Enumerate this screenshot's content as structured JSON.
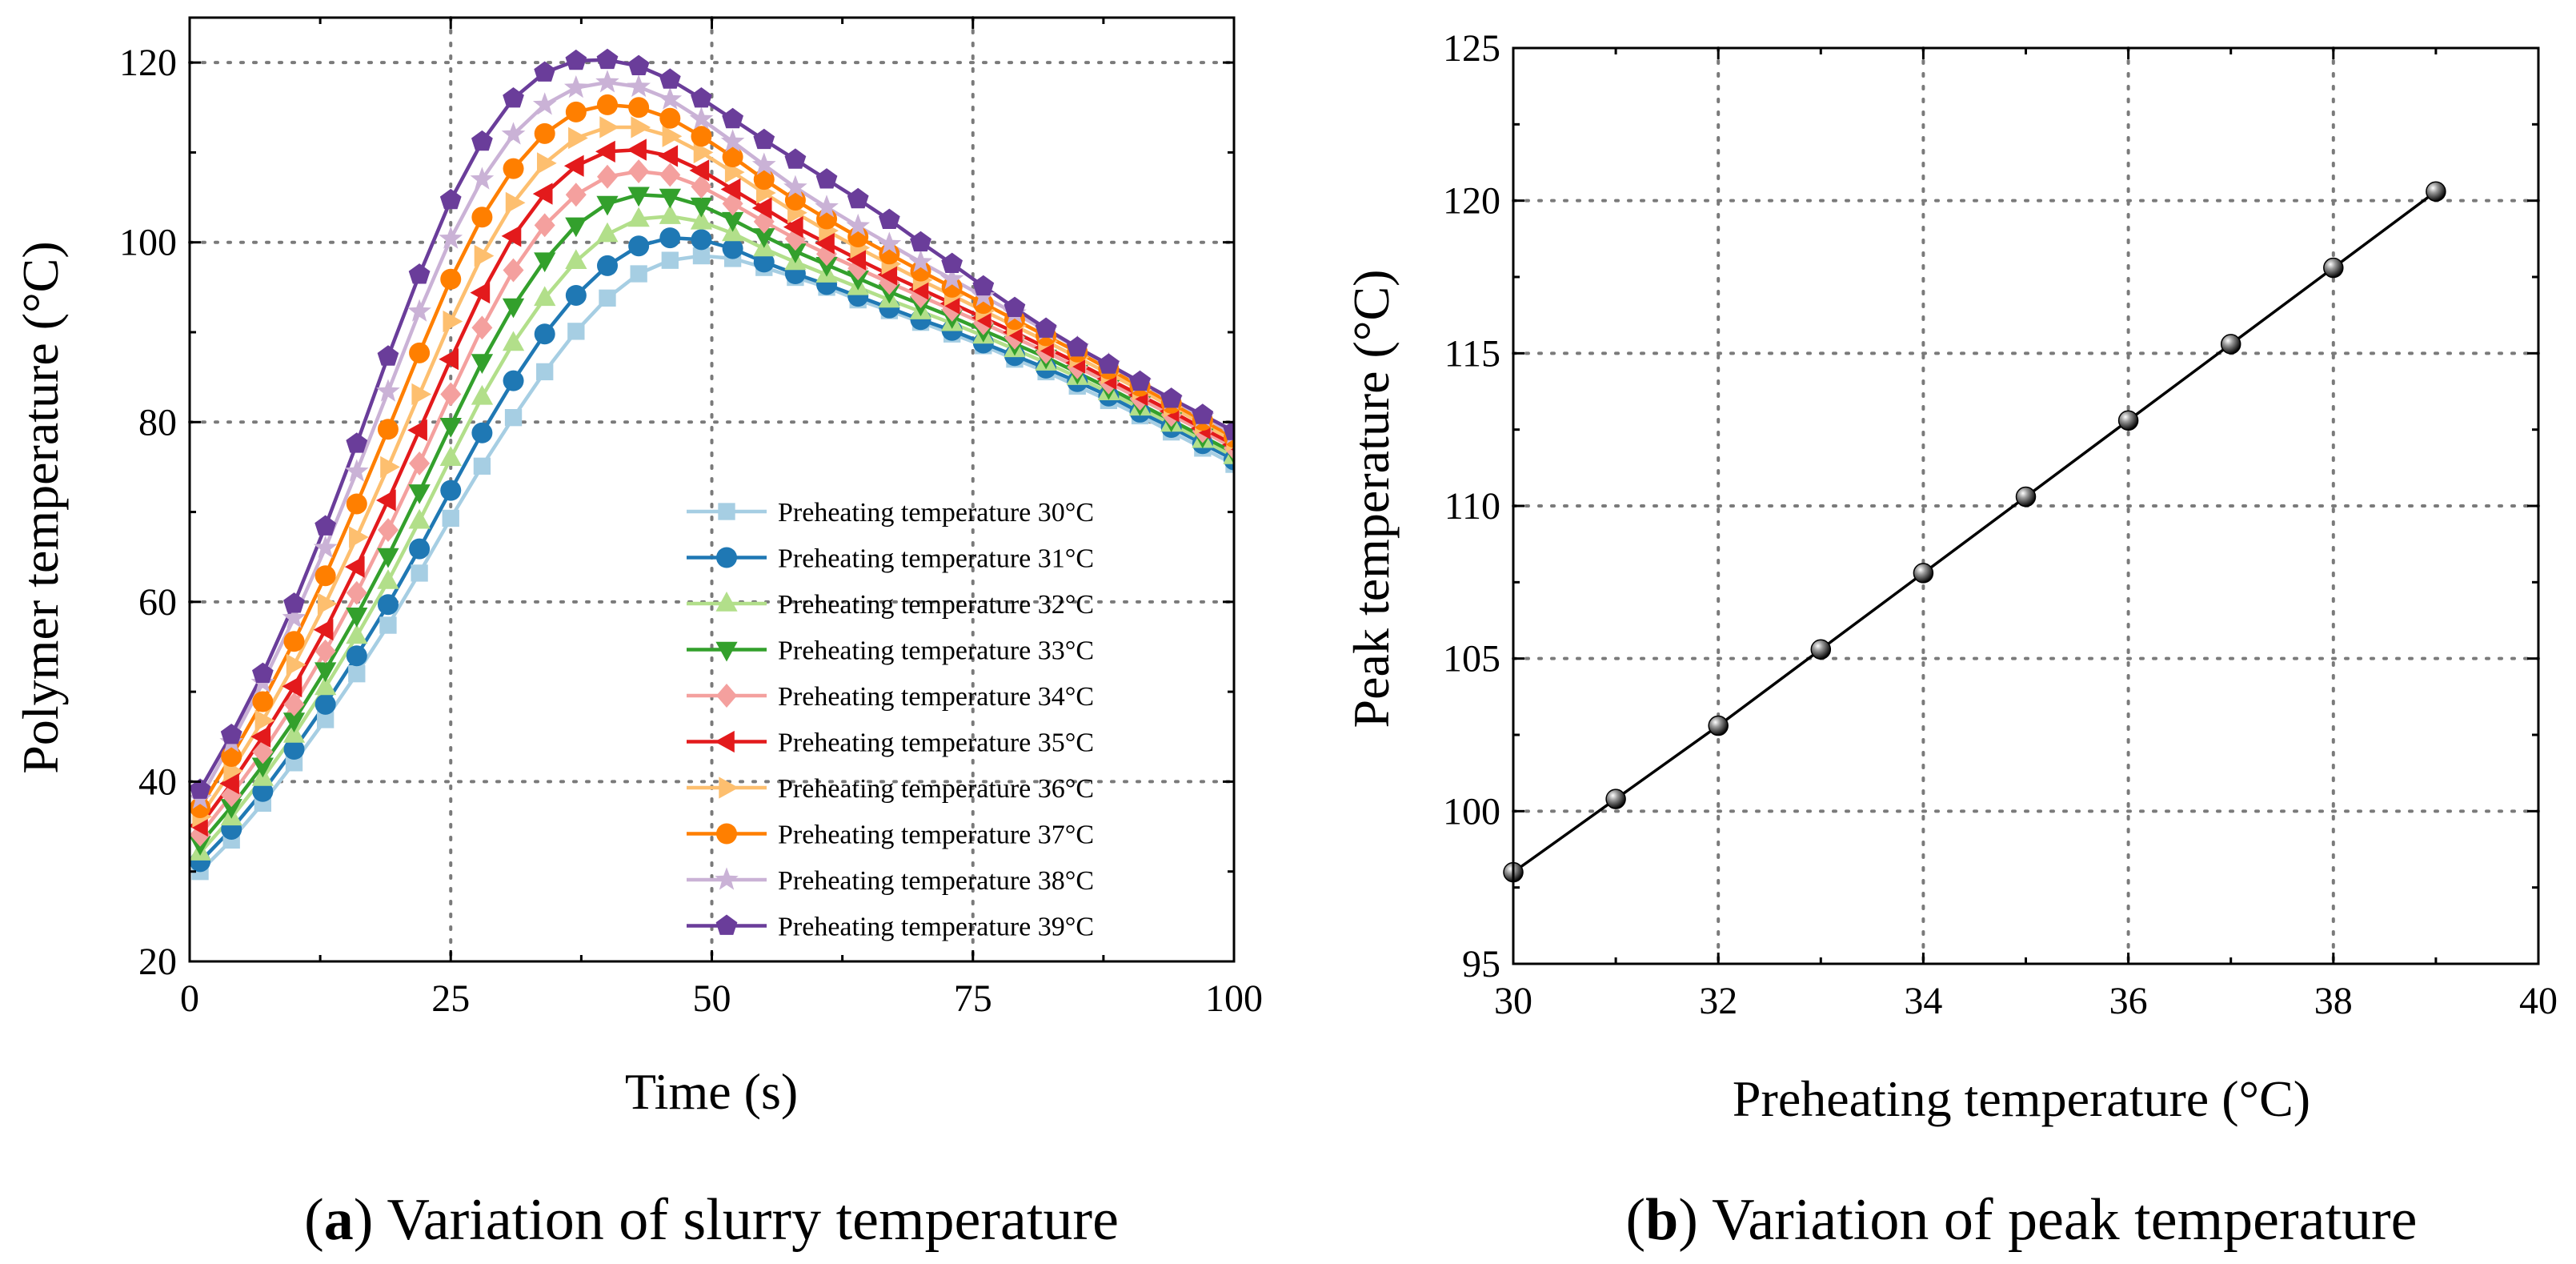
{
  "chart_data": [
    {
      "type": "line",
      "caption_letter": "a",
      "caption_text": ") Variation of slurry temperature",
      "caption_open": "(",
      "xlabel": "Time (s)",
      "ylabel": "Polymer temperature (°C)",
      "xlim": [
        0,
        100
      ],
      "ylim": [
        20,
        125
      ],
      "xticks": [
        "0",
        "25",
        "50",
        "75",
        "100"
      ],
      "yticks": [
        "20",
        "40",
        "60",
        "80",
        "100",
        "120"
      ],
      "grid": true,
      "legend_position": "bottom-right",
      "x": [
        1,
        4,
        7,
        10,
        13,
        16,
        19,
        22,
        25,
        28,
        31,
        34,
        37,
        40,
        43,
        46,
        49,
        52,
        55,
        58,
        61,
        64,
        67,
        70,
        73,
        76,
        79,
        82,
        85,
        88,
        91,
        94,
        97,
        100
      ],
      "series": [
        {
          "name": "Preheating temperature 30°C",
          "color": "#a6cee3",
          "marker": "square",
          "values": [
            30.0,
            33.5,
            37.6,
            42.1,
            46.9,
            52.0,
            57.4,
            63.2,
            69.3,
            75.1,
            80.5,
            85.6,
            90.1,
            93.8,
            96.5,
            98.0,
            98.5,
            98.2,
            97.2,
            96.1,
            95.0,
            93.6,
            92.4,
            91.1,
            89.8,
            88.5,
            87.0,
            85.6,
            84.0,
            82.4,
            80.7,
            78.9,
            77.1,
            75.3
          ]
        },
        {
          "name": "Preheating temperature 31°C",
          "color": "#1f78b4",
          "marker": "circle",
          "values": [
            31.1,
            34.7,
            38.9,
            43.6,
            48.6,
            54.0,
            59.7,
            65.9,
            72.4,
            78.8,
            84.6,
            89.8,
            94.1,
            97.4,
            99.6,
            100.5,
            100.3,
            99.3,
            97.8,
            96.5,
            95.3,
            94.0,
            92.7,
            91.4,
            90.2,
            88.8,
            87.4,
            86.0,
            84.5,
            82.9,
            81.1,
            79.4,
            77.6,
            75.8
          ]
        },
        {
          "name": "Preheating temperature 32°C",
          "color": "#b2df8a",
          "marker": "triangle-up",
          "values": [
            32.1,
            36.0,
            40.4,
            45.2,
            50.5,
            56.2,
            62.3,
            69.0,
            76.0,
            82.8,
            88.8,
            93.8,
            97.9,
            100.9,
            102.6,
            102.9,
            102.3,
            101.0,
            99.3,
            97.8,
            96.4,
            95.0,
            93.6,
            92.3,
            91.0,
            89.6,
            88.1,
            86.6,
            85.0,
            83.3,
            81.6,
            79.8,
            78.0,
            76.2
          ]
        },
        {
          "name": "Preheating temperature 33°C",
          "color": "#33a02c",
          "marker": "triangle-down",
          "values": [
            33.1,
            37.2,
            41.8,
            46.8,
            52.4,
            58.5,
            65.1,
            72.2,
            79.6,
            86.7,
            92.9,
            98.0,
            101.9,
            104.3,
            105.3,
            105.1,
            104.1,
            102.5,
            100.7,
            99.0,
            97.5,
            96.0,
            94.5,
            93.1,
            91.7,
            90.2,
            88.7,
            87.2,
            85.5,
            83.8,
            82.0,
            80.2,
            78.4,
            76.6
          ]
        },
        {
          "name": "Preheating temperature 34°C",
          "color": "#f4a09e",
          "marker": "diamond",
          "values": [
            34.1,
            38.5,
            43.3,
            48.6,
            54.5,
            61.0,
            68.0,
            75.4,
            83.1,
            90.5,
            96.9,
            101.9,
            105.3,
            107.3,
            107.9,
            107.5,
            106.2,
            104.3,
            102.3,
            100.4,
            98.7,
            97.1,
            95.5,
            94.0,
            92.5,
            91.0,
            89.4,
            87.8,
            86.1,
            84.4,
            82.6,
            80.8,
            79.0,
            77.1
          ]
        },
        {
          "name": "Preheating temperature 35°C",
          "color": "#e31a1c",
          "marker": "triangle-left",
          "values": [
            35.1,
            39.8,
            45.0,
            50.6,
            56.9,
            63.9,
            71.3,
            79.1,
            87.0,
            94.4,
            100.7,
            105.4,
            108.5,
            110.1,
            110.3,
            109.6,
            108.0,
            105.9,
            103.8,
            101.7,
            99.9,
            98.1,
            96.4,
            94.8,
            93.2,
            91.6,
            90.0,
            88.3,
            86.6,
            84.8,
            83.0,
            81.2,
            79.3,
            77.5
          ]
        },
        {
          "name": "Preheating temperature 36°C",
          "color": "#fdbf6f",
          "marker": "triangle-right",
          "values": [
            36.1,
            41.2,
            46.8,
            53.0,
            59.8,
            67.2,
            75.0,
            83.1,
            91.2,
            98.5,
            104.4,
            108.8,
            111.6,
            112.8,
            112.8,
            111.8,
            110.0,
            107.8,
            105.5,
            103.3,
            101.3,
            99.4,
            97.6,
            95.8,
            94.1,
            92.4,
            90.7,
            89.0,
            87.2,
            85.4,
            83.6,
            81.7,
            79.8,
            77.9
          ]
        },
        {
          "name": "Preheating temperature 37°C",
          "color": "#ff7f00",
          "marker": "circle",
          "values": [
            37.1,
            42.8,
            48.9,
            55.6,
            62.9,
            70.9,
            79.2,
            87.7,
            95.9,
            102.8,
            108.2,
            112.1,
            114.5,
            115.3,
            115.0,
            113.8,
            111.8,
            109.5,
            107.0,
            104.7,
            102.6,
            100.6,
            98.7,
            96.8,
            95.0,
            93.2,
            91.4,
            89.6,
            87.8,
            85.9,
            84.0,
            82.1,
            80.2,
            78.3
          ]
        },
        {
          "name": "Preheating temperature 38°C",
          "color": "#cab2d6",
          "marker": "star",
          "values": [
            38.1,
            44.4,
            51.0,
            58.2,
            66.0,
            74.5,
            83.4,
            92.3,
            100.4,
            107.0,
            112.0,
            115.3,
            117.2,
            117.8,
            117.3,
            115.9,
            113.7,
            111.2,
            108.6,
            106.1,
            103.9,
            101.8,
            99.8,
            97.8,
            95.9,
            94.0,
            92.1,
            90.2,
            88.3,
            86.4,
            84.4,
            82.5,
            80.6,
            78.7
          ]
        },
        {
          "name": "Preheating temperature 39°C",
          "color": "#6a3d9a",
          "marker": "pentagon",
          "values": [
            39.1,
            45.2,
            52.0,
            59.8,
            68.4,
            77.6,
            87.3,
            96.4,
            104.7,
            111.2,
            116.0,
            118.9,
            120.2,
            120.3,
            119.6,
            118.1,
            116.0,
            113.7,
            111.4,
            109.2,
            107.0,
            104.8,
            102.5,
            100.0,
            97.6,
            95.1,
            92.7,
            90.4,
            88.3,
            86.4,
            84.5,
            82.6,
            80.8,
            79.0
          ]
        }
      ]
    },
    {
      "type": "line",
      "caption_letter": "b",
      "caption_text": ") Variation of peak temperature",
      "caption_open": "(",
      "xlabel": "Preheating temperature (°C)",
      "ylabel": "Peak temperature (°C)",
      "xlim": [
        30,
        40
      ],
      "ylim": [
        95,
        125
      ],
      "xticks": [
        "30",
        "32",
        "34",
        "36",
        "38",
        "40"
      ],
      "yticks": [
        "95",
        "100",
        "105",
        "110",
        "115",
        "120",
        "125"
      ],
      "grid": true,
      "series": [
        {
          "color": "#000000",
          "marker": "sphere",
          "x": [
            30,
            31,
            32,
            33,
            34,
            35,
            36,
            37,
            38,
            39
          ],
          "values": [
            98.0,
            100.4,
            102.8,
            105.3,
            107.8,
            110.3,
            112.8,
            115.3,
            117.8,
            120.3
          ]
        }
      ]
    }
  ]
}
